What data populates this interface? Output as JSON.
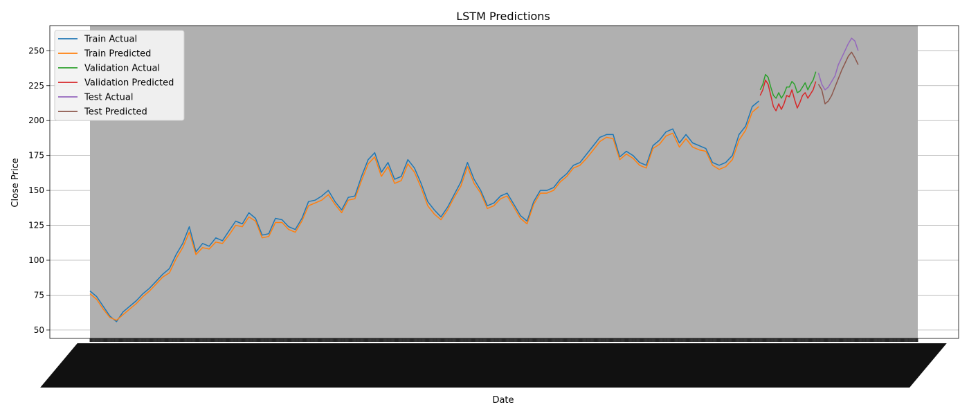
{
  "chart_data": {
    "type": "line",
    "title": "LSTM Predictions",
    "xlabel": "Date",
    "ylabel": "Close Price",
    "ylim": [
      44,
      268
    ],
    "yticks": [
      50,
      75,
      100,
      125,
      150,
      175,
      200,
      225,
      250
    ],
    "x_index_range": [
      0,
      1250
    ],
    "grid": "horizontal",
    "legend_position": "top-left",
    "colors": {
      "train_actual": "#1f77b4",
      "train_predicted": "#ff7f0e",
      "validation_actual": "#2ca02c",
      "validation_predicted": "#d62728",
      "test_actual": "#9467bd",
      "test_predicted": "#8c564b",
      "shaded_band": "#b0b0b0"
    },
    "series": [
      {
        "name": "Train Actual",
        "key": "train_actual",
        "start": 0,
        "step": 10,
        "values": [
          78,
          74,
          67,
          60,
          56,
          63,
          67,
          71,
          76,
          80,
          85,
          90,
          94,
          104,
          112,
          124,
          106,
          112,
          110,
          116,
          114,
          121,
          128,
          126,
          134,
          130,
          118,
          119,
          130,
          129,
          124,
          122,
          130,
          142,
          143,
          146,
          150,
          142,
          136,
          145,
          146,
          160,
          172,
          177,
          163,
          170,
          158,
          160,
          172,
          166,
          155,
          142,
          136,
          131,
          138,
          147,
          156,
          170,
          158,
          150,
          139,
          141,
          146,
          148,
          140,
          132,
          128,
          142,
          150,
          150,
          152,
          158,
          162,
          168,
          170,
          176,
          182,
          188,
          190,
          190,
          174,
          178,
          175,
          170,
          168,
          182,
          186,
          192,
          194,
          184,
          190,
          184,
          182,
          180,
          170,
          168,
          170,
          175,
          190,
          196,
          210,
          214
        ]
      },
      {
        "name": "Train Predicted",
        "key": "train_predicted",
        "start": 0,
        "step": 10,
        "values": [
          76,
          72,
          65,
          59,
          57,
          61,
          65,
          69,
          74,
          78,
          83,
          88,
          91,
          101,
          109,
          120,
          104,
          109,
          108,
          113,
          112,
          118,
          125,
          124,
          131,
          128,
          116,
          117,
          127,
          127,
          122,
          120,
          128,
          139,
          141,
          143,
          147,
          140,
          134,
          143,
          144,
          157,
          169,
          174,
          160,
          167,
          155,
          157,
          169,
          163,
          152,
          139,
          133,
          129,
          136,
          145,
          153,
          167,
          155,
          148,
          137,
          139,
          144,
          146,
          138,
          130,
          126,
          140,
          148,
          148,
          150,
          156,
          160,
          166,
          168,
          173,
          179,
          185,
          188,
          187,
          172,
          176,
          173,
          168,
          166,
          180,
          183,
          189,
          191,
          181,
          187,
          181,
          179,
          178,
          168,
          165,
          167,
          172,
          186,
          193,
          206,
          210
        ]
      },
      {
        "name": "Validation Actual",
        "key": "validation_actual",
        "start": 1012,
        "step": 4,
        "values": [
          222,
          226,
          233,
          231,
          224,
          218,
          216,
          220,
          216,
          219,
          224,
          224,
          228,
          226,
          220,
          221,
          224,
          227,
          222,
          226,
          229,
          235
        ]
      },
      {
        "name": "Validation Predicted",
        "key": "validation_predicted",
        "start": 1012,
        "step": 4,
        "values": [
          218,
          222,
          229,
          226,
          218,
          210,
          207,
          212,
          208,
          212,
          218,
          217,
          222,
          215,
          209,
          213,
          218,
          220,
          216,
          219,
          222,
          228
        ]
      },
      {
        "name": "Test Actual",
        "key": "test_actual",
        "start": 1100,
        "step": 5,
        "values": [
          234,
          226,
          222,
          224,
          228,
          232,
          240,
          245,
          250,
          255,
          259,
          257,
          250
        ]
      },
      {
        "name": "Test Predicted",
        "key": "test_predicted",
        "start": 1100,
        "step": 5,
        "values": [
          226,
          222,
          212,
          214,
          218,
          224,
          230,
          236,
          241,
          246,
          249,
          245,
          240
        ]
      }
    ]
  }
}
